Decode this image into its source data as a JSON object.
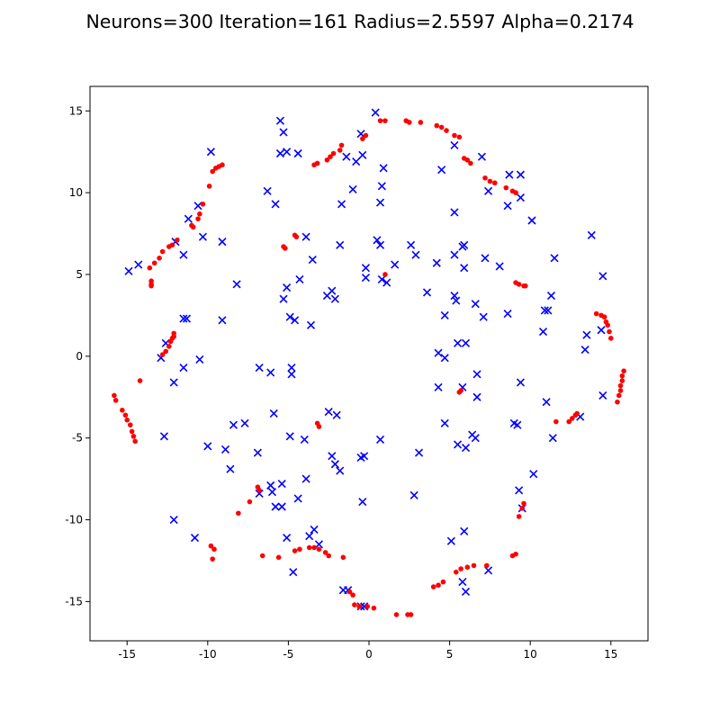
{
  "chart_data": {
    "type": "scatter",
    "title": "Neurons=300 Iteration=161 Radius=2.5597 Alpha=0.2174",
    "xlabel": "",
    "ylabel": "",
    "xlim": [
      -17.3,
      17.3
    ],
    "ylim": [
      -17.4,
      16.5
    ],
    "xticks": [
      -15,
      -10,
      -5,
      0,
      5,
      10,
      15
    ],
    "yticks": [
      -15,
      -10,
      -5,
      0,
      5,
      10,
      15
    ],
    "grid": false,
    "series": [
      {
        "marker": "x",
        "color": "#0000ff",
        "points": [
          [
            0.4,
            14.9
          ],
          [
            -5.5,
            14.4
          ],
          [
            -5.3,
            13.7
          ],
          [
            -0.5,
            13.6
          ],
          [
            5.3,
            12.9
          ],
          [
            7.0,
            12.2
          ],
          [
            -9.8,
            12.5
          ],
          [
            -5.5,
            12.4
          ],
          [
            -5.1,
            12.5
          ],
          [
            -4.4,
            12.4
          ],
          [
            -1.4,
            12.2
          ],
          [
            -0.8,
            11.9
          ],
          [
            -0.4,
            12.3
          ],
          [
            0.9,
            11.5
          ],
          [
            4.5,
            11.4
          ],
          [
            8.7,
            11.1
          ],
          [
            9.4,
            11.1
          ],
          [
            7.4,
            10.1
          ],
          [
            -6.3,
            10.1
          ],
          [
            -1.0,
            10.2
          ],
          [
            0.8,
            10.4
          ],
          [
            9.4,
            9.7
          ],
          [
            0.7,
            9.4
          ],
          [
            -5.8,
            9.3
          ],
          [
            -1.7,
            9.3
          ],
          [
            -10.6,
            9.2
          ],
          [
            8.6,
            9.2
          ],
          [
            5.3,
            8.8
          ],
          [
            -11.2,
            8.4
          ],
          [
            10.1,
            8.3
          ],
          [
            13.8,
            7.4
          ],
          [
            -3.9,
            7.3
          ],
          [
            -10.3,
            7.3
          ],
          [
            -12.0,
            7.0
          ],
          [
            -9.1,
            7.0
          ],
          [
            0.5,
            7.1
          ],
          [
            0.7,
            6.8
          ],
          [
            2.6,
            6.8
          ],
          [
            5.8,
            6.7
          ],
          [
            5.9,
            6.8
          ],
          [
            -1.8,
            6.8
          ],
          [
            -11.5,
            6.2
          ],
          [
            5.3,
            6.2
          ],
          [
            2.9,
            6.2
          ],
          [
            7.2,
            6.0
          ],
          [
            11.5,
            6.0
          ],
          [
            -3.5,
            5.9
          ],
          [
            4.2,
            5.7
          ],
          [
            1.6,
            5.6
          ],
          [
            8.1,
            5.5
          ],
          [
            -14.3,
            5.6
          ],
          [
            -14.9,
            5.2
          ],
          [
            -0.2,
            5.4
          ],
          [
            5.9,
            5.4
          ],
          [
            -0.2,
            4.8
          ],
          [
            0.8,
            4.7
          ],
          [
            1.1,
            4.5
          ],
          [
            14.5,
            4.9
          ],
          [
            -4.3,
            4.7
          ],
          [
            -8.2,
            4.4
          ],
          [
            -5.1,
            4.2
          ],
          [
            -2.3,
            4.0
          ],
          [
            -2.6,
            3.7
          ],
          [
            3.6,
            3.9
          ],
          [
            -2.1,
            3.5
          ],
          [
            5.3,
            3.7
          ],
          [
            -5.3,
            3.5
          ],
          [
            5.4,
            3.4
          ],
          [
            6.6,
            3.2
          ],
          [
            11.3,
            3.7
          ],
          [
            11.1,
            2.8
          ],
          [
            10.9,
            2.8
          ],
          [
            8.6,
            2.6
          ],
          [
            4.7,
            2.5
          ],
          [
            7.1,
            2.4
          ],
          [
            -4.9,
            2.4
          ],
          [
            -4.6,
            2.2
          ],
          [
            -11.5,
            2.3
          ],
          [
            -11.3,
            2.3
          ],
          [
            -9.1,
            2.2
          ],
          [
            -3.6,
            1.9
          ],
          [
            10.8,
            1.5
          ],
          [
            13.5,
            1.3
          ],
          [
            14.4,
            1.6
          ],
          [
            -12.6,
            0.8
          ],
          [
            5.5,
            0.8
          ],
          [
            6.0,
            0.8
          ],
          [
            13.4,
            0.4
          ],
          [
            4.3,
            0.2
          ],
          [
            4.7,
            -0.1
          ],
          [
            -12.9,
            -0.1
          ],
          [
            -10.5,
            -0.2
          ],
          [
            -11.5,
            -0.7
          ],
          [
            -6.8,
            -0.7
          ],
          [
            -4.8,
            -0.7
          ],
          [
            -6.1,
            -1.0
          ],
          [
            -4.8,
            -1.1
          ],
          [
            6.7,
            -1.1
          ],
          [
            -12.1,
            -1.6
          ],
          [
            9.4,
            -1.6
          ],
          [
            4.3,
            -1.9
          ],
          [
            5.8,
            -1.9
          ],
          [
            14.5,
            -2.4
          ],
          [
            6.7,
            -2.5
          ],
          [
            11.0,
            -2.8
          ],
          [
            -5.9,
            -3.5
          ],
          [
            -2.5,
            -3.4
          ],
          [
            -2.0,
            -3.6
          ],
          [
            13.1,
            -3.7
          ],
          [
            4.7,
            -4.1
          ],
          [
            -8.4,
            -4.2
          ],
          [
            -7.7,
            -4.1
          ],
          [
            9.0,
            -4.1
          ],
          [
            9.2,
            -4.2
          ],
          [
            -12.7,
            -4.9
          ],
          [
            -4.9,
            -4.9
          ],
          [
            -4.0,
            -5.1
          ],
          [
            0.7,
            -5.1
          ],
          [
            6.4,
            -4.8
          ],
          [
            6.6,
            -5.0
          ],
          [
            11.4,
            -5.0
          ],
          [
            5.5,
            -5.4
          ],
          [
            6.0,
            -5.6
          ],
          [
            -10.0,
            -5.5
          ],
          [
            -8.9,
            -5.7
          ],
          [
            3.1,
            -5.9
          ],
          [
            -6.9,
            -5.9
          ],
          [
            -2.3,
            -6.1
          ],
          [
            -0.3,
            -6.1
          ],
          [
            -0.5,
            -6.2
          ],
          [
            -2.1,
            -6.6
          ],
          [
            -1.8,
            -7.0
          ],
          [
            10.2,
            -7.2
          ],
          [
            -8.6,
            -6.9
          ],
          [
            -3.9,
            -7.5
          ],
          [
            -5.4,
            -7.8
          ],
          [
            -6.1,
            -7.9
          ],
          [
            -6.0,
            -8.3
          ],
          [
            -6.8,
            -8.4
          ],
          [
            -4.4,
            -8.7
          ],
          [
            9.3,
            -8.2
          ],
          [
            2.8,
            -8.5
          ],
          [
            -0.4,
            -8.9
          ],
          [
            -5.8,
            -9.2
          ],
          [
            -5.4,
            -9.2
          ],
          [
            9.5,
            -9.3
          ],
          [
            -12.1,
            -10.0
          ],
          [
            -3.4,
            -10.6
          ],
          [
            -3.7,
            -11.0
          ],
          [
            -5.1,
            -11.1
          ],
          [
            -10.8,
            -11.1
          ],
          [
            5.9,
            -10.7
          ],
          [
            5.1,
            -11.3
          ],
          [
            -3.1,
            -11.5
          ],
          [
            -4.7,
            -13.2
          ],
          [
            7.4,
            -13.1
          ],
          [
            5.8,
            -13.8
          ],
          [
            6.0,
            -14.4
          ],
          [
            -1.6,
            -14.3
          ],
          [
            -1.3,
            -14.3
          ],
          [
            -0.5,
            -15.3
          ],
          [
            -0.3,
            -15.3
          ]
        ]
      },
      {
        "marker": "o",
        "color": "#ff0000",
        "points": [
          [
            0.7,
            14.4
          ],
          [
            1.0,
            14.4
          ],
          [
            2.3,
            14.4
          ],
          [
            2.5,
            14.3
          ],
          [
            3.2,
            14.3
          ],
          [
            4.2,
            14.1
          ],
          [
            4.5,
            14.0
          ],
          [
            4.8,
            13.8
          ],
          [
            5.3,
            13.5
          ],
          [
            5.6,
            13.4
          ],
          [
            -0.4,
            13.3
          ],
          [
            -0.2,
            13.5
          ],
          [
            -1.7,
            12.9
          ],
          [
            -1.8,
            12.6
          ],
          [
            -2.2,
            12.4
          ],
          [
            -2.4,
            12.2
          ],
          [
            -2.6,
            12.0
          ],
          [
            -3.2,
            11.8
          ],
          [
            -3.4,
            11.7
          ],
          [
            5.9,
            12.1
          ],
          [
            6.1,
            12.0
          ],
          [
            6.3,
            11.8
          ],
          [
            -9.1,
            11.7
          ],
          [
            -9.3,
            11.6
          ],
          [
            -9.5,
            11.5
          ],
          [
            -9.7,
            11.3
          ],
          [
            7.2,
            10.9
          ],
          [
            7.5,
            10.7
          ],
          [
            7.8,
            10.6
          ],
          [
            8.5,
            10.3
          ],
          [
            8.9,
            10.1
          ],
          [
            9.1,
            10.0
          ],
          [
            -9.9,
            10.4
          ],
          [
            -10.3,
            9.3
          ],
          [
            -10.5,
            8.7
          ],
          [
            -10.6,
            8.4
          ],
          [
            -10.9,
            7.9
          ],
          [
            -11.0,
            8.0
          ],
          [
            -11.9,
            7.1
          ],
          [
            -12.2,
            6.8
          ],
          [
            -12.4,
            6.7
          ],
          [
            -12.8,
            6.4
          ],
          [
            -13.0,
            6.0
          ],
          [
            -13.3,
            5.7
          ],
          [
            -13.6,
            5.4
          ],
          [
            -13.5,
            4.6
          ],
          [
            -13.5,
            4.4
          ],
          [
            -13.5,
            4.3
          ],
          [
            -5.3,
            6.7
          ],
          [
            -5.2,
            6.6
          ],
          [
            -4.6,
            7.4
          ],
          [
            -4.5,
            7.3
          ],
          [
            1.0,
            5.0
          ],
          [
            9.1,
            4.5
          ],
          [
            9.3,
            4.4
          ],
          [
            9.6,
            4.3
          ],
          [
            9.7,
            4.3
          ],
          [
            14.1,
            2.6
          ],
          [
            14.4,
            2.5
          ],
          [
            14.6,
            2.4
          ],
          [
            14.7,
            2.1
          ],
          [
            14.8,
            1.9
          ],
          [
            14.9,
            1.5
          ],
          [
            15.0,
            1.1
          ],
          [
            -12.1,
            1.4
          ],
          [
            -12.1,
            1.2
          ],
          [
            -12.2,
            1.1
          ],
          [
            -12.3,
            0.9
          ],
          [
            -12.4,
            0.6
          ],
          [
            -12.6,
            0.3
          ],
          [
            -12.8,
            0.1
          ],
          [
            -14.2,
            -1.5
          ],
          [
            15.8,
            -0.9
          ],
          [
            15.7,
            -1.2
          ],
          [
            15.7,
            -1.5
          ],
          [
            15.6,
            -1.8
          ],
          [
            15.6,
            -2.1
          ],
          [
            15.5,
            -2.4
          ],
          [
            15.4,
            -2.8
          ],
          [
            5.6,
            -2.2
          ],
          [
            5.7,
            -2.1
          ],
          [
            -15.8,
            -2.4
          ],
          [
            -15.7,
            -2.7
          ],
          [
            -15.3,
            -3.3
          ],
          [
            -15.1,
            -3.6
          ],
          [
            -15.0,
            -3.9
          ],
          [
            -14.8,
            -4.2
          ],
          [
            -14.7,
            -4.6
          ],
          [
            -14.6,
            -4.9
          ],
          [
            -14.5,
            -5.2
          ],
          [
            -3.2,
            -4.1
          ],
          [
            -3.1,
            -4.3
          ],
          [
            11.6,
            -4.0
          ],
          [
            12.4,
            -4.0
          ],
          [
            12.6,
            -3.8
          ],
          [
            12.8,
            -3.6
          ],
          [
            12.9,
            -3.5
          ],
          [
            -6.9,
            -8.0
          ],
          [
            -6.8,
            -8.2
          ],
          [
            -7.4,
            -8.9
          ],
          [
            -8.1,
            -9.6
          ],
          [
            9.6,
            -9.0
          ],
          [
            9.5,
            -9.3
          ],
          [
            9.3,
            -9.8
          ],
          [
            -9.8,
            -11.6
          ],
          [
            -9.6,
            -11.8
          ],
          [
            -9.7,
            -12.4
          ],
          [
            -6.6,
            -12.2
          ],
          [
            -5.6,
            -12.3
          ],
          [
            -4.6,
            -11.9
          ],
          [
            -4.3,
            -11.8
          ],
          [
            -3.7,
            -11.7
          ],
          [
            -3.4,
            -11.7
          ],
          [
            -3.1,
            -11.8
          ],
          [
            -2.7,
            -12.0
          ],
          [
            -2.5,
            -12.2
          ],
          [
            -1.6,
            -12.3
          ],
          [
            8.9,
            -12.2
          ],
          [
            9.1,
            -12.1
          ],
          [
            5.4,
            -13.2
          ],
          [
            5.7,
            -13.0
          ],
          [
            6.1,
            -12.9
          ],
          [
            6.5,
            -12.8
          ],
          [
            7.3,
            -12.8
          ],
          [
            4.6,
            -13.8
          ],
          [
            4.3,
            -14.0
          ],
          [
            4.0,
            -14.1
          ],
          [
            -1.2,
            -14.4
          ],
          [
            -1.0,
            -14.6
          ],
          [
            -0.9,
            -15.2
          ],
          [
            -0.6,
            -15.3
          ],
          [
            -0.1,
            -15.3
          ],
          [
            0.3,
            -15.4
          ],
          [
            1.7,
            -15.8
          ],
          [
            2.4,
            -15.8
          ],
          [
            2.6,
            -15.8
          ]
        ]
      }
    ]
  }
}
